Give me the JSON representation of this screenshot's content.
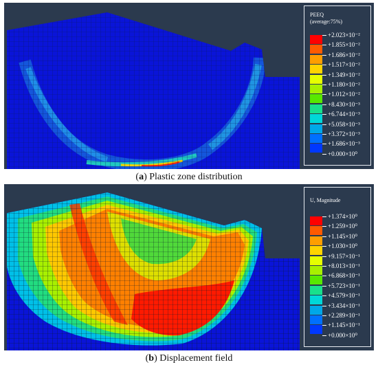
{
  "panel_a": {
    "legend_title": "PEEQ",
    "legend_subtitle": "(average:75%)",
    "legend_values": [
      "+2.023×10⁻²",
      "+1.855×10⁻²",
      "+1.686×10⁻²",
      "+1.517×10⁻²",
      "+1.349×10⁻²",
      "+1.180×10⁻²",
      "+1.012×10⁻²",
      "+8.430×10⁻³",
      "+6.744×10⁻³",
      "+5.058×10⁻³",
      "+3.372×10⁻³",
      "+1.686×10⁻³",
      "+0.000×10⁰"
    ],
    "caption_letter": "a",
    "caption_text": " Plastic zone distribution"
  },
  "panel_b": {
    "legend_title": "U, Magnitude",
    "legend_values": [
      "+1.374×10⁰",
      "+1.259×10⁰",
      "+1.145×10⁰",
      "+1.030×10⁰",
      "+9.157×10⁻¹",
      "+8.013×10⁻¹",
      "+6.868×10⁻¹",
      "+5.723×10⁻¹",
      "+4.579×10⁻¹",
      "+3.434×10⁻¹",
      "+2.289×10⁻¹",
      "+1.145×10⁻¹",
      "+0.000×10⁰"
    ],
    "caption_letter": "b",
    "caption_text": " Displacement field"
  },
  "colors": {
    "background": "#2b3a4e",
    "scale": [
      "#ff0000",
      "#ff5a00",
      "#ff9e00",
      "#ffd400",
      "#e6ff00",
      "#a8f000",
      "#58e800",
      "#18e08c",
      "#00d8d8",
      "#00a8e8",
      "#0070ff",
      "#0038ff",
      "#0000e0"
    ]
  }
}
